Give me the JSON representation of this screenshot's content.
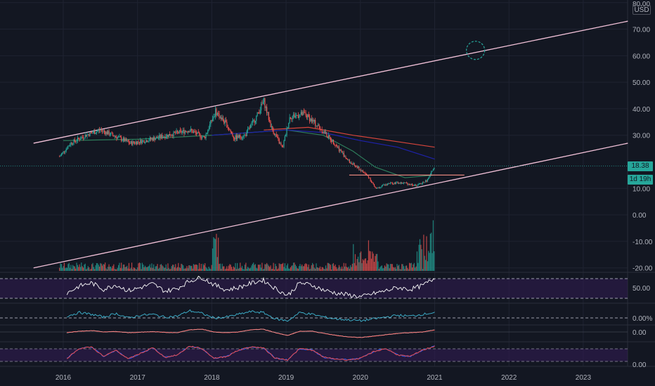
{
  "header": {
    "currency": "USD"
  },
  "last_price": {
    "value": "18.38",
    "countdown": "1d 19h"
  },
  "colors": {
    "background": "#131722",
    "up": "#26a69a",
    "down": "#ef5350",
    "channel": "#f3c2d9",
    "resistance": "#f28b82",
    "ema_fast": "#2e7d5b",
    "ema_mid": "#1e22aa",
    "ema_slow": "#d6453b",
    "rsi_band": "#311b52",
    "rsi_line": "#ffffff",
    "osc_line": "#3fb8d4",
    "macd_line": "#ffffff",
    "macd_signal": "#e33b3b",
    "stoch_k": "#e94b4b",
    "stoch_d": "#2962ff",
    "last_price_line": "#26a69a",
    "annotation_circle": "#26a69a"
  },
  "chart_data": {
    "type": "candlestick",
    "x_axis": {
      "tick_labels": [
        "2016",
        "2017",
        "2018",
        "2019",
        "2020",
        "2021",
        "2022",
        "2023"
      ]
    },
    "price_axis": {
      "tick_labels": [
        "80.00",
        "70.00",
        "60.00",
        "50.00",
        "40.00",
        "30.00",
        "10.00",
        "0.00",
        "-10.00",
        "-20.00"
      ],
      "ylim": [
        -20,
        80
      ],
      "scale": "linear"
    },
    "price_series": [
      {
        "t": 2015.95,
        "v": 22
      },
      {
        "t": 2016.1,
        "v": 27
      },
      {
        "t": 2016.3,
        "v": 30
      },
      {
        "t": 2016.5,
        "v": 32
      },
      {
        "t": 2016.75,
        "v": 29
      },
      {
        "t": 2016.9,
        "v": 27
      },
      {
        "t": 2017.1,
        "v": 28
      },
      {
        "t": 2017.4,
        "v": 30
      },
      {
        "t": 2017.7,
        "v": 32
      },
      {
        "t": 2017.9,
        "v": 29
      },
      {
        "t": 2018.05,
        "v": 39
      },
      {
        "t": 2018.2,
        "v": 34
      },
      {
        "t": 2018.3,
        "v": 29
      },
      {
        "t": 2018.45,
        "v": 30
      },
      {
        "t": 2018.6,
        "v": 37
      },
      {
        "t": 2018.7,
        "v": 43
      },
      {
        "t": 2018.8,
        "v": 33
      },
      {
        "t": 2018.95,
        "v": 25
      },
      {
        "t": 2019.05,
        "v": 37
      },
      {
        "t": 2019.25,
        "v": 38
      },
      {
        "t": 2019.45,
        "v": 33
      },
      {
        "t": 2019.65,
        "v": 27
      },
      {
        "t": 2019.85,
        "v": 20
      },
      {
        "t": 2020.0,
        "v": 17
      },
      {
        "t": 2020.12,
        "v": 14
      },
      {
        "t": 2020.2,
        "v": 10
      },
      {
        "t": 2020.4,
        "v": 12
      },
      {
        "t": 2020.6,
        "v": 12
      },
      {
        "t": 2020.75,
        "v": 11
      },
      {
        "t": 2020.9,
        "v": 13
      },
      {
        "t": 2021.0,
        "v": 18.38
      }
    ],
    "moving_averages": [
      {
        "name": "",
        "color_key": "ema_fast",
        "points": [
          [
            2016.0,
            28
          ],
          [
            2017.0,
            28.5
          ],
          [
            2018.0,
            30
          ],
          [
            2019.0,
            32
          ],
          [
            2019.5,
            30
          ],
          [
            2019.9,
            24
          ],
          [
            2020.2,
            18
          ],
          [
            2020.6,
            14
          ],
          [
            2021.0,
            15
          ]
        ]
      },
      {
        "name": "",
        "color_key": "ema_mid",
        "points": [
          [
            2018.0,
            30
          ],
          [
            2019.0,
            32
          ],
          [
            2019.5,
            31
          ],
          [
            2020.0,
            28
          ],
          [
            2020.5,
            25.5
          ],
          [
            2021.0,
            21
          ]
        ]
      },
      {
        "name": "",
        "color_key": "ema_slow",
        "points": [
          [
            2018.7,
            32
          ],
          [
            2019.3,
            33
          ],
          [
            2019.9,
            30
          ],
          [
            2020.4,
            28
          ],
          [
            2021.0,
            25.5
          ]
        ]
      }
    ],
    "annotations": {
      "channel_upper": {
        "from": [
          2015.6,
          27
        ],
        "to": [
          2023.6,
          73
        ]
      },
      "channel_lower": {
        "from": [
          2015.6,
          -20
        ],
        "to": [
          2023.6,
          27
        ]
      },
      "resistance": {
        "from": [
          2019.85,
          15
        ],
        "to": [
          2021.4,
          15
        ]
      },
      "target_circle": {
        "t": 2021.55,
        "v": 62
      }
    },
    "rsi": {
      "tick_labels": [
        "50.00"
      ],
      "values": [
        40,
        55,
        62,
        48,
        58,
        45,
        52,
        60,
        44,
        50,
        66,
        74,
        58,
        47,
        52,
        61,
        68,
        50,
        35,
        62,
        57,
        46,
        40,
        36,
        32,
        39,
        45,
        52,
        48,
        56,
        72
      ]
    },
    "oscillator": {
      "tick_labels": [
        "0.00%"
      ],
      "values": [
        0,
        4,
        2,
        -1,
        3,
        -2,
        1,
        2,
        -1,
        0,
        6,
        3,
        -2,
        -1,
        2,
        5,
        4,
        -3,
        -5,
        4,
        2,
        -1,
        -3,
        -4,
        -5,
        -3,
        -1,
        1,
        0,
        2,
        4
      ]
    },
    "macd": {
      "tick_labels": [
        "0.00"
      ],
      "values": [
        0,
        1,
        1.5,
        0.5,
        0.8,
        0,
        0.3,
        0.8,
        0.2,
        0,
        2,
        2.5,
        0.5,
        0,
        0.5,
        2,
        2.5,
        0,
        -2,
        1,
        1,
        -0.5,
        -2,
        -3,
        -3.5,
        -2.5,
        -1.5,
        -0.5,
        0,
        0.5,
        2
      ]
    },
    "stochastic": {
      "tick_labels": [
        "0.00"
      ],
      "values": [
        20,
        80,
        90,
        30,
        70,
        15,
        50,
        85,
        25,
        40,
        95,
        80,
        20,
        30,
        70,
        90,
        85,
        20,
        10,
        80,
        70,
        25,
        15,
        10,
        20,
        60,
        80,
        40,
        30,
        70,
        95
      ]
    }
  }
}
